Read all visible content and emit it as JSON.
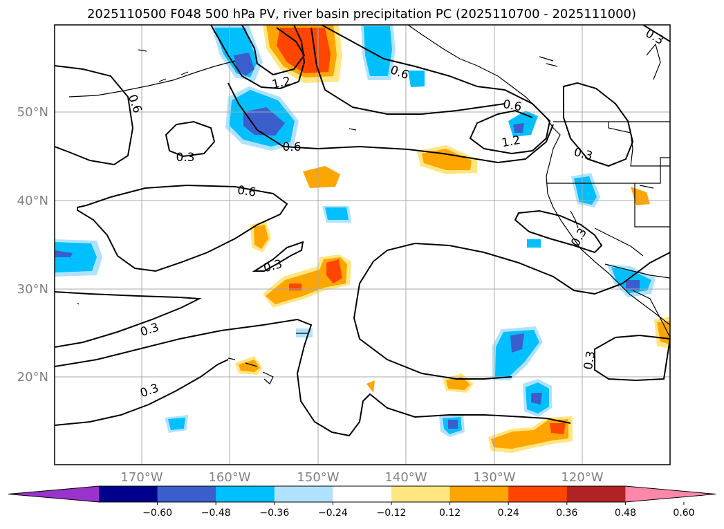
{
  "title": "2025110500 F048 500 hPa PV, river basin precipitation PC (2025110700 - 2025111000)",
  "lat_labels": [
    "50°N",
    "40°N",
    "30°N",
    "20°N"
  ],
  "lon_labels": [
    "170°W",
    "160°W",
    "150°W",
    "140°W",
    "130°W",
    "120°W"
  ],
  "contour_labels": {
    "a": "0.6",
    "b": "1.2",
    "c": "0.6",
    "d": "0.6",
    "e": "0.6",
    "f": "1.2",
    "g": "0.3",
    "h": "0.3",
    "i": "0.6",
    "j": "0.3",
    "k": "0.3",
    "l": "0.3",
    "m": "0.3",
    "n": "0.3",
    "o": "0.3"
  },
  "colorbar": {
    "ticks": [
      "−0.60",
      "−0.48",
      "−0.36",
      "−0.24",
      "−0.12",
      "0.12",
      "0.24",
      "0.36",
      "0.48",
      "0.60"
    ],
    "colors": [
      "#9933cc",
      "#00008b",
      "#3a5fcd",
      "#00bfff",
      "#b0e2ff",
      "#ffffff",
      "#ffe680",
      "#ffa500",
      "#ff4500",
      "#b22222",
      "#ff88aa"
    ]
  }
}
